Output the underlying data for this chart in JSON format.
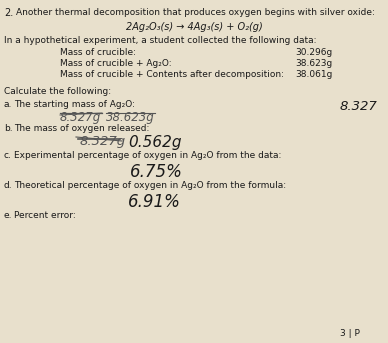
{
  "bg_color": "#e8e0cc",
  "text_color": "#1a1a1a",
  "gray_color": "#555555",
  "dark_color": "#222222",
  "figsize": [
    3.88,
    3.43
  ],
  "dpi": 100,
  "question_num": "2.",
  "title_line": "Another thermal decomposition that produces oxygen begins with silver oxide:",
  "equation": "2Ag₂O₃(s) → 4Ag₃(s) + O₂(g)",
  "intro": "In a hypothetical experiment, a student collected the following data:",
  "data_labels": [
    "Mass of crucible:",
    "Mass of crucible + Ag₂O:",
    "Mass of crucible + Contents after decomposition:"
  ],
  "data_values": [
    "30.296g",
    "38.623g",
    "38.061g"
  ],
  "calc_header": "Calculate the following:",
  "a_label": "The starting mass of Ag₂O:",
  "a_scribble": "8.327g",
  "a_scribble2": "38.623g",
  "a_answer": "8.327",
  "b_label": "The mass of oxygen released:",
  "b_struck": "8.327g",
  "b_answer": "0.562g",
  "c_label": "Experimental percentage of oxygen in Ag₂O from the data:",
  "c_answer": "6.75%",
  "d_label": "Theoretical percentage of oxygen in Ag₂O from the formula:",
  "d_answer": "6.91%",
  "e_label": "Percent error:",
  "page_label": "3 | P"
}
